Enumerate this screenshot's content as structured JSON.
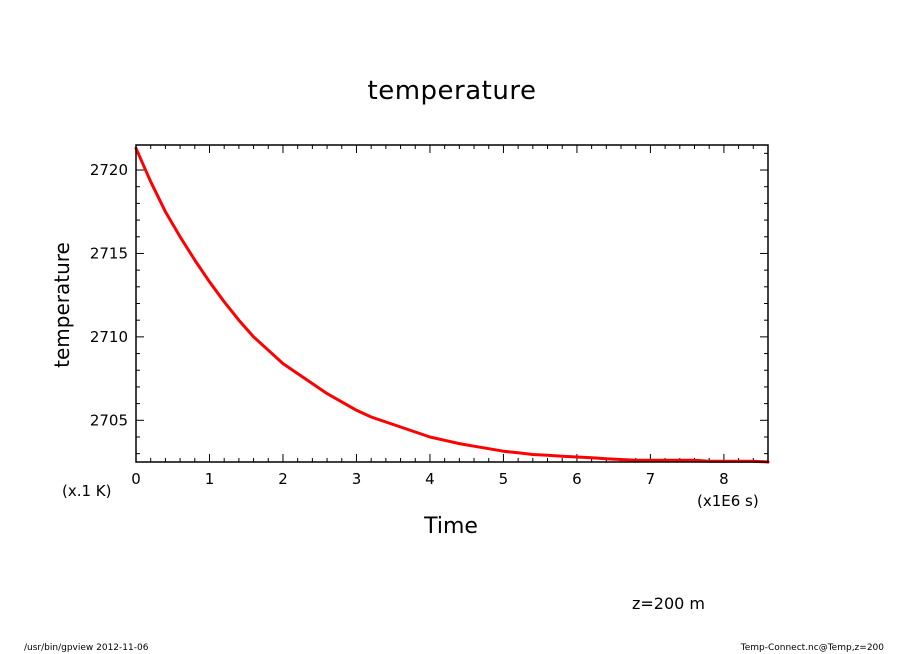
{
  "chart_data": {
    "type": "line",
    "title": "temperature",
    "xlabel": "Time",
    "ylabel": "temperature",
    "x_unit": "(x1E6 s)",
    "y_unit": "(x.1 K)",
    "xlim": [
      0,
      8.6
    ],
    "ylim": [
      2702.5,
      2721.5
    ],
    "x_ticks": [
      "0",
      "1",
      "2",
      "3",
      "4",
      "5",
      "6",
      "7",
      "8"
    ],
    "y_ticks": [
      "2705",
      "2710",
      "2715",
      "2720"
    ],
    "grid": false,
    "series": [
      {
        "color": "#ff0000",
        "x": [
          0,
          0.2,
          0.4,
          0.6,
          0.8,
          1.0,
          1.2,
          1.4,
          1.6,
          1.8,
          2.0,
          2.2,
          2.4,
          2.6,
          2.8,
          3.0,
          3.2,
          3.4,
          3.6,
          3.8,
          4.0,
          4.2,
          4.4,
          4.6,
          4.8,
          5.0,
          5.2,
          5.4,
          5.6,
          5.8,
          6.0,
          6.2,
          6.4,
          6.6,
          6.8,
          7.0,
          7.2,
          7.4,
          7.6,
          7.8,
          8.0,
          8.2,
          8.4,
          8.6
        ],
        "values": [
          2721.3,
          2719.3,
          2717.5,
          2716.0,
          2714.6,
          2713.3,
          2712.1,
          2711.0,
          2710.0,
          2709.2,
          2708.4,
          2707.8,
          2707.2,
          2706.6,
          2706.1,
          2705.6,
          2705.2,
          2704.9,
          2704.6,
          2704.3,
          2704.0,
          2703.8,
          2703.6,
          2703.45,
          2703.3,
          2703.15,
          2703.05,
          2702.95,
          2702.9,
          2702.85,
          2702.8,
          2702.75,
          2702.7,
          2702.65,
          2702.6,
          2702.6,
          2702.6,
          2702.6,
          2702.6,
          2702.55,
          2702.55,
          2702.55,
          2702.55,
          2702.5
        ]
      }
    ]
  },
  "annotation": "z=200 m",
  "footer": {
    "left": "/usr/bin/gpview   2012-11-06",
    "right": "Temp-Connect.nc@Temp,z=200"
  }
}
